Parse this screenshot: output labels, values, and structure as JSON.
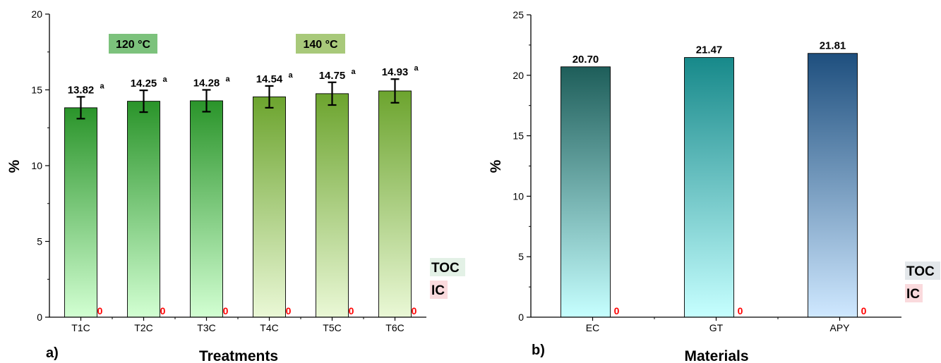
{
  "chart_data": [
    {
      "type": "bar",
      "panel_label": "a)",
      "xlabel": "Treatments",
      "ylabel": "%",
      "ylim": [
        0,
        20
      ],
      "yticks": [
        0,
        5,
        10,
        15,
        20
      ],
      "categories": [
        "T1C",
        "T2C",
        "T3C",
        "T4C",
        "T5C",
        "T6C"
      ],
      "series": [
        {
          "name": "TOC",
          "values": [
            13.82,
            14.25,
            14.28,
            14.54,
            14.75,
            14.93
          ],
          "error": [
            0.72,
            0.72,
            0.72,
            0.72,
            0.75,
            0.78
          ],
          "labels": [
            "13.82",
            "14.25",
            "14.28",
            "14.54",
            "14.75",
            "14.93"
          ],
          "superscripts": [
            "a",
            "a",
            "a",
            "a",
            "a",
            "a"
          ],
          "colors": [
            "#2a942a",
            "#2a942a",
            "#2a942a",
            "#6ca42e",
            "#6ca42e",
            "#6ca42e"
          ],
          "light_colors": [
            "#d2ffd2",
            "#d2ffd2",
            "#d2ffd2",
            "#eaf8d6",
            "#eaf8d6",
            "#eaf8d6"
          ]
        },
        {
          "name": "IC",
          "values": [
            0,
            0,
            0,
            0,
            0,
            0
          ],
          "labels": [
            "0",
            "0",
            "0",
            "0",
            "0",
            "0"
          ]
        }
      ],
      "group_labels": [
        {
          "text": "120 °C",
          "color": "#7cc27c"
        },
        {
          "text": "140 °C",
          "color": "#a8c97a"
        }
      ],
      "legend": {
        "placement": "bottom-right",
        "items": [
          {
            "text": "TOC",
            "bg": "#e3f1e6"
          },
          {
            "text": "IC",
            "bg": "#fadadd"
          }
        ]
      }
    },
    {
      "type": "bar",
      "panel_label": "b)",
      "xlabel": "Materials",
      "ylabel": "%",
      "ylim": [
        0,
        25
      ],
      "yticks": [
        0,
        5,
        10,
        15,
        20,
        25
      ],
      "categories": [
        "EC",
        "GT",
        "APY"
      ],
      "series": [
        {
          "name": "TOC",
          "values": [
            20.7,
            21.47,
            21.81
          ],
          "labels": [
            "20.70",
            "21.47",
            "21.81"
          ],
          "colors": [
            "#1e5e5a",
            "#17898a",
            "#1e4f7e"
          ],
          "light_colors": [
            "#c6ffff",
            "#c6ffff",
            "#cfe8ff"
          ]
        },
        {
          "name": "IC",
          "values": [
            0,
            0,
            0
          ],
          "labels": [
            "0",
            "0",
            "0"
          ]
        }
      ],
      "legend": {
        "placement": "bottom-right",
        "items": [
          {
            "text": "TOC",
            "bg": "#e3e7ea"
          },
          {
            "text": "IC",
            "bg": "#fadadd"
          }
        ]
      }
    }
  ]
}
